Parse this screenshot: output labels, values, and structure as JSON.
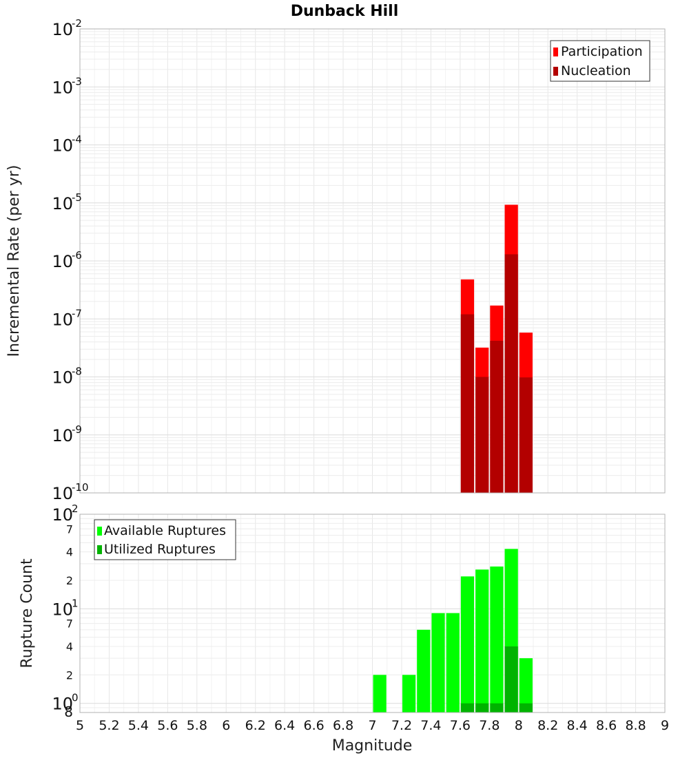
{
  "chart_data": [
    {
      "type": "bar",
      "title": "Dunback Hill",
      "ylabel": "Incremental Rate (per yr)",
      "xlabel": "",
      "yscale": "log",
      "ylim": [
        1e-10,
        0.01
      ],
      "xlim": [
        5,
        9
      ],
      "bar_width": 0.1,
      "y_ticks": [
        {
          "base": "10",
          "exp": "-2"
        },
        {
          "base": "10",
          "exp": "-3"
        },
        {
          "base": "10",
          "exp": "-4"
        },
        {
          "base": "10",
          "exp": "-5"
        },
        {
          "base": "10",
          "exp": "-6"
        },
        {
          "base": "10",
          "exp": "-7"
        },
        {
          "base": "10",
          "exp": "-8"
        },
        {
          "base": "10",
          "exp": "-9"
        },
        {
          "base": "10",
          "exp": "-10"
        }
      ],
      "legend_position": "top-right",
      "grid": true,
      "series": [
        {
          "name": "Participation",
          "color": "#ff0000",
          "points": [
            {
              "x": 7.65,
              "y": 4.8e-07
            },
            {
              "x": 7.75,
              "y": 3.2e-08
            },
            {
              "x": 7.85,
              "y": 1.7e-07
            },
            {
              "x": 7.95,
              "y": 9.3e-06
            },
            {
              "x": 8.05,
              "y": 5.8e-08
            }
          ]
        },
        {
          "name": "Nucleation",
          "color": "#b30000",
          "points": [
            {
              "x": 7.65,
              "y": 1.2e-07
            },
            {
              "x": 7.75,
              "y": 1e-08
            },
            {
              "x": 7.85,
              "y": 4.2e-08
            },
            {
              "x": 7.95,
              "y": 1.3e-06
            },
            {
              "x": 8.05,
              "y": 9.8e-09
            }
          ]
        }
      ]
    },
    {
      "type": "bar",
      "title": "",
      "ylabel": "Rupture Count",
      "xlabel": "Magnitude",
      "yscale": "log",
      "ylim": [
        0.8,
        100
      ],
      "xlim": [
        5,
        9
      ],
      "bar_width": 0.1,
      "x_tick_labels": [
        "5",
        "5.2",
        "5.4",
        "5.6",
        "5.8",
        "6",
        "6.2",
        "6.4",
        "6.6",
        "6.8",
        "7",
        "7.2",
        "7.4",
        "7.6",
        "7.8",
        "8",
        "8.2",
        "8.4",
        "8.6",
        "8.8",
        "9"
      ],
      "y_major_ticks": [
        {
          "base": "10",
          "exp": "2"
        },
        {
          "base": "10",
          "exp": "1"
        },
        {
          "base": "10",
          "exp": "0"
        }
      ],
      "y_minor_ticks": [
        "7",
        "4",
        "2",
        "7",
        "4",
        "2",
        "8"
      ],
      "legend_position": "top-left",
      "grid": true,
      "series": [
        {
          "name": "Available Ruptures",
          "color": "#00ff00",
          "points": [
            {
              "x": 7.05,
              "y": 2
            },
            {
              "x": 7.25,
              "y": 2
            },
            {
              "x": 7.35,
              "y": 6
            },
            {
              "x": 7.45,
              "y": 9
            },
            {
              "x": 7.55,
              "y": 9
            },
            {
              "x": 7.65,
              "y": 22
            },
            {
              "x": 7.75,
              "y": 26
            },
            {
              "x": 7.85,
              "y": 28
            },
            {
              "x": 7.95,
              "y": 43
            },
            {
              "x": 8.05,
              "y": 3
            }
          ]
        },
        {
          "name": "Utilized Ruptures",
          "color": "#00b300",
          "points": [
            {
              "x": 7.65,
              "y": 1
            },
            {
              "x": 7.75,
              "y": 1
            },
            {
              "x": 7.85,
              "y": 1
            },
            {
              "x": 7.95,
              "y": 4
            },
            {
              "x": 8.05,
              "y": 1
            }
          ]
        }
      ]
    }
  ]
}
